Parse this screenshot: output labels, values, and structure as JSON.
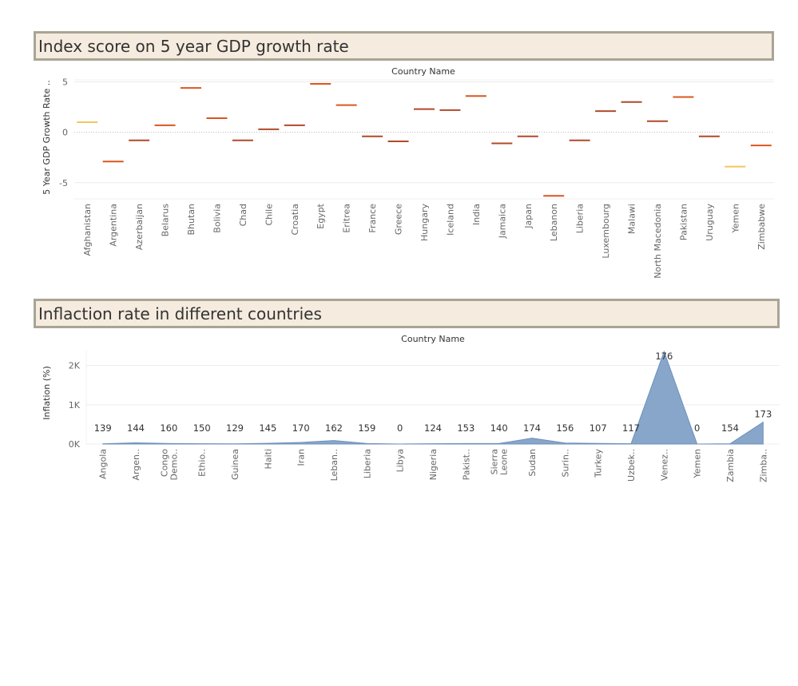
{
  "panels": [
    {
      "title": "Index score on 5 year GDP growth rate"
    },
    {
      "title": "Inflaction rate in different countries"
    }
  ],
  "chart_data": [
    {
      "type": "scatter",
      "mark": "horizontal-tick",
      "title": "Index score on 5 year GDP growth rate",
      "xlabel": "Country Name",
      "ylabel": "5 Year GDP Growth Rate ..",
      "yticks": [
        5,
        0,
        -5
      ],
      "ylim": [
        -6.6,
        5.2
      ],
      "reference_line": 0,
      "colors": {
        "low": "#f2c75c",
        "high": "#d9571e",
        "mid": "#b1492a"
      },
      "categories": [
        "Afghanistan",
        "Argentina",
        "Azerbaijan",
        "Belarus",
        "Bhutan",
        "Bolivia",
        "Chad",
        "Chile",
        "Croatia",
        "Egypt",
        "Eritrea",
        "France",
        "Greece",
        "Hungary",
        "Iceland",
        "India",
        "Jamaica",
        "Japan",
        "Lebanon",
        "Liberia",
        "Luxembourg",
        "Malawi",
        "North Macedonia",
        "Pakistan",
        "Uruguay",
        "Yemen",
        "Zimbabwe"
      ],
      "values": [
        1.0,
        -2.9,
        -0.8,
        0.7,
        4.4,
        1.4,
        -0.8,
        0.3,
        0.7,
        4.8,
        2.7,
        -0.4,
        -0.9,
        2.3,
        2.2,
        3.6,
        -1.1,
        -0.4,
        -6.3,
        -0.8,
        2.1,
        3.0,
        1.1,
        3.5,
        -0.4,
        -3.4,
        -1.3
      ],
      "tick_colors": [
        "#f2c75c",
        "#d9571e",
        "#b1492a",
        "#d9571e",
        "#d9571e",
        "#d9571e",
        "#b1492a",
        "#b1492a",
        "#b1492a",
        "#d9571e",
        "#d9571e",
        "#b1492a",
        "#b1492a",
        "#b1492a",
        "#b1492a",
        "#d9571e",
        "#b1492a",
        "#b1492a",
        "#d9571e",
        "#b1492a",
        "#b1492a",
        "#b1492a",
        "#b1492a",
        "#d9571e",
        "#b1492a",
        "#f2c75c",
        "#d9571e"
      ]
    },
    {
      "type": "area",
      "title": "Inflaction rate in different countries",
      "xlabel": "Country Name",
      "ylabel": "Inflation (%)",
      "yticks": [
        "2K",
        "1K",
        "0K"
      ],
      "ytick_values": [
        2000,
        1000,
        0
      ],
      "ylim": [
        0,
        2400
      ],
      "color": "#7b9cc4",
      "categories": [
        "Angola",
        "Argen..",
        "Congo Demo..",
        "Ethio..",
        "Guinea",
        "Haiti",
        "Iran",
        "Leban..",
        "Liberia",
        "Libya",
        "Nigeria",
        "Pakist..",
        "Sierra Leone",
        "Sudan",
        "Surin..",
        "Turkey",
        "Uzbek..",
        "Venez..",
        "Yemen",
        "Zambia",
        "Zimba.."
      ],
      "values": [
        5,
        30,
        12,
        8,
        5,
        18,
        40,
        90,
        12,
        0,
        8,
        12,
        12,
        150,
        25,
        15,
        8,
        2355,
        0,
        8,
        557
      ],
      "labels": [
        "139",
        "144",
        "160",
        "150",
        "129",
        "145",
        "170",
        "162",
        "159",
        "0",
        "124",
        "153",
        "140",
        "174",
        "156",
        "107",
        "117",
        "176",
        "0",
        "154",
        "173"
      ]
    }
  ]
}
